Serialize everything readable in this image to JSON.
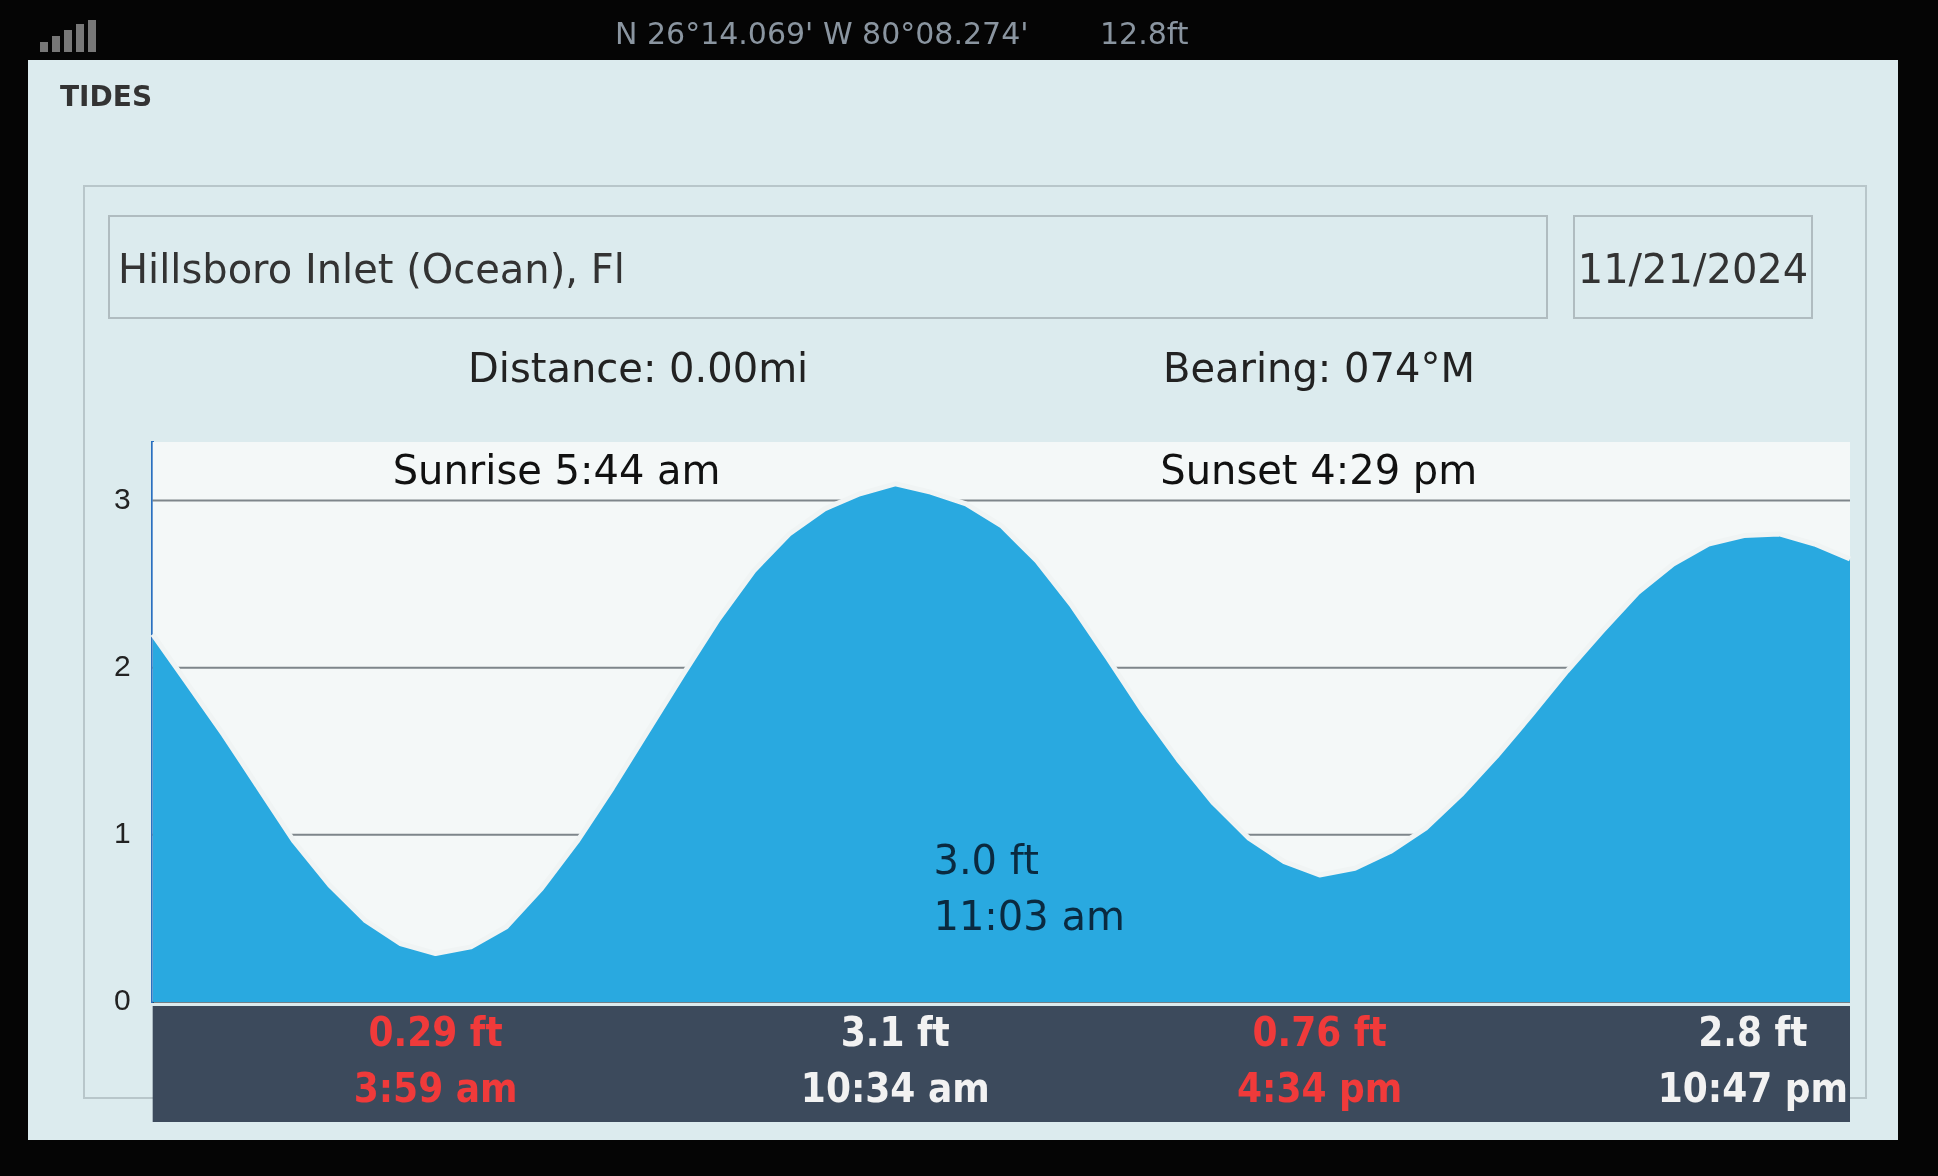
{
  "chart_data": {
    "type": "area",
    "title": "TIDES",
    "subtitle": "Hillsboro Inlet (Ocean), Fl",
    "annotations": [
      "N 26°14.069' W 80°08.274'",
      "12.8ft",
      "11/21/2024",
      "Distance: 0.00mi",
      "Bearing: 074°M",
      "Sunrise 5:44 am",
      "Sunset 4:29 pm",
      "3.0 ft\n11:03 am",
      "0.29 ft\n3:59 am",
      "3.1 ft\n10:34 am",
      "0.76 ft\n4:34 pm",
      "2.8 ft\n10:47 pm"
    ],
    "categories": [
      null,
      null,
      null,
      null,
      null,
      null,
      null,
      null,
      null,
      null,
      null,
      null,
      null,
      null,
      null,
      null,
      null,
      null,
      null,
      null,
      null,
      null,
      null,
      null,
      null,
      null,
      null,
      null,
      null,
      null,
      null,
      null,
      null,
      null,
      null,
      null,
      null,
      null,
      null,
      null,
      null,
      null,
      null,
      null,
      null,
      null,
      null,
      null,
      null
    ],
    "series": [
      {
        "color": "#29a9e0",
        "values": [
          2.2,
          1.9,
          1.6,
          1.28,
          0.96,
          0.7,
          0.49,
          0.35,
          0.29,
          0.33,
          0.45,
          0.68,
          0.96,
          1.28,
          1.62,
          1.96,
          2.29,
          2.58,
          2.8,
          2.95,
          3.04,
          3.1,
          3.05,
          2.98,
          2.85,
          2.64,
          2.37,
          2.06,
          1.74,
          1.45,
          1.19,
          0.98,
          0.84,
          0.76,
          0.8,
          0.9,
          1.04,
          1.24,
          1.47,
          1.72,
          1.98,
          2.22,
          2.45,
          2.62,
          2.74,
          2.79,
          2.8,
          2.74,
          2.65
        ]
      }
    ],
    "ylim": [
      0,
      3.35
    ],
    "yticks": [
      0,
      1,
      2,
      3
    ],
    "tick_labels": "y",
    "grid": "y"
  }
}
